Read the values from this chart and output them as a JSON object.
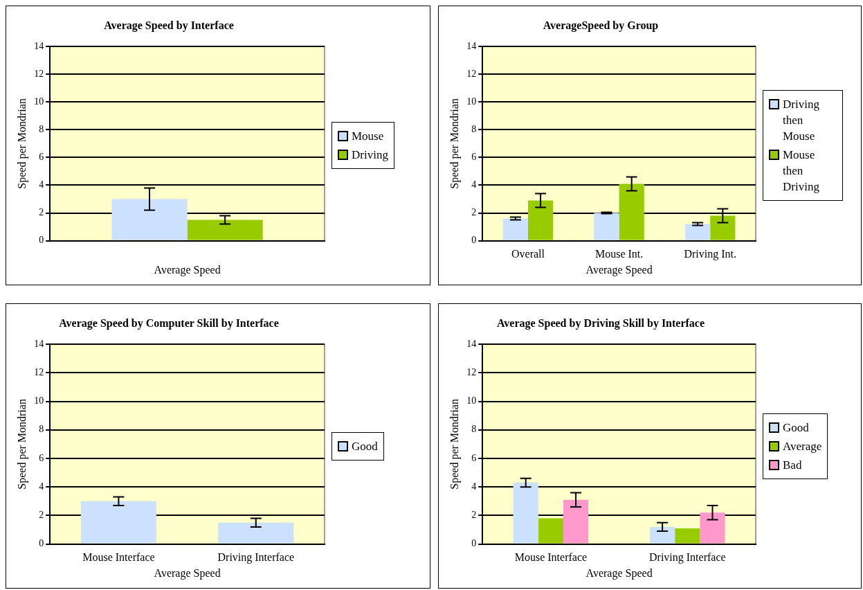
{
  "chart_data": [
    {
      "type": "bar",
      "title": "Average Speed by Interface",
      "xlabel": "Average Speed",
      "ylabel": "Speed per Mondrian",
      "categories": [
        null
      ],
      "series": [
        {
          "name": "Mouse",
          "color": "#cce0ff",
          "values": [
            3.0
          ],
          "errors": [
            [
              2.2,
              3.8
            ]
          ]
        },
        {
          "name": "Driving",
          "color": "#99cc00",
          "values": [
            1.5
          ],
          "errors": [
            [
              1.2,
              1.8
            ]
          ]
        }
      ],
      "ylim": [
        0,
        14
      ],
      "yticks": [
        0,
        2,
        4,
        6,
        8,
        10,
        12,
        14
      ],
      "grid": "y",
      "legend": "right"
    },
    {
      "type": "bar",
      "title": "AverageSpeed by Group",
      "xlabel": "Average Speed",
      "ylabel": "Speed per Mondrian",
      "categories": [
        "Overall",
        "Mouse Int.",
        "Driving Int."
      ],
      "series": [
        {
          "name": "Driving then Mouse",
          "color": "#cce0ff",
          "values": [
            1.6,
            2.0,
            1.2
          ],
          "errors": [
            [
              1.5,
              1.7
            ],
            [
              1.95,
              2.05
            ],
            [
              1.1,
              1.3
            ]
          ]
        },
        {
          "name": "Mouse then Driving",
          "color": "#99cc00",
          "values": [
            2.9,
            4.1,
            1.8
          ],
          "errors": [
            [
              2.4,
              3.4
            ],
            [
              3.6,
              4.6
            ],
            [
              1.3,
              2.3
            ]
          ]
        }
      ],
      "ylim": [
        0,
        14
      ],
      "yticks": [
        0,
        2,
        4,
        6,
        8,
        10,
        12,
        14
      ],
      "grid": "y",
      "legend": "right"
    },
    {
      "type": "bar",
      "title": "Average Speed by Computer Skill by Interface",
      "xlabel": "Average Speed",
      "ylabel": "Speed per Mondrian",
      "categories": [
        "Mouse Interface",
        "Driving Interface"
      ],
      "series": [
        {
          "name": "Good",
          "color": "#cce0ff",
          "values": [
            3.0,
            1.5
          ],
          "errors": [
            [
              2.7,
              3.3
            ],
            [
              1.2,
              1.8
            ]
          ]
        }
      ],
      "ylim": [
        0,
        14
      ],
      "yticks": [
        0,
        2,
        4,
        6,
        8,
        10,
        12,
        14
      ],
      "grid": "y",
      "legend": "right"
    },
    {
      "type": "bar",
      "title": "Average Speed by Driving Skill by Interface",
      "xlabel": "Average Speed",
      "ylabel": "Speed per Mondrian",
      "categories": [
        "Mouse Interface",
        "Driving Interface"
      ],
      "series": [
        {
          "name": "Good",
          "color": "#cce0ff",
          "values": [
            4.3,
            1.2
          ],
          "errors": [
            [
              4.0,
              4.6
            ],
            [
              0.9,
              1.5
            ]
          ]
        },
        {
          "name": "Average",
          "color": "#99cc00",
          "values": [
            1.8,
            1.1
          ]
        },
        {
          "name": "Bad",
          "color": "#ff99cc",
          "values": [
            3.1,
            2.2
          ],
          "errors": [
            [
              2.6,
              3.6
            ],
            [
              1.7,
              2.7
            ]
          ]
        }
      ],
      "ylim": [
        0,
        14
      ],
      "yticks": [
        0,
        2,
        4,
        6,
        8,
        10,
        12,
        14
      ],
      "grid": "y",
      "legend": "right"
    }
  ]
}
